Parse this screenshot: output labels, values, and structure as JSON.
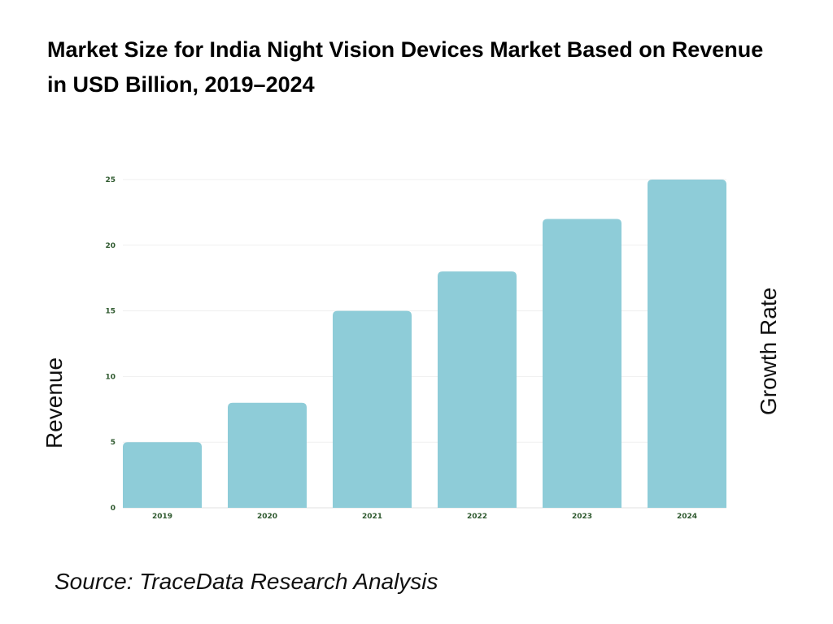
{
  "title": "Market Size for India Night Vision Devices Market Based on Revenue in USD Billion, 2019–2024",
  "source": "Source: TraceData Research Analysis",
  "chart_data": {
    "type": "bar",
    "title": "Market Size for India Night Vision Devices Market Based on Revenue in USD Billion, 2019–2024",
    "ylabel": "Revenue",
    "y2label": "Growth Rate",
    "categories": [
      "2019",
      "2020",
      "2021",
      "2022",
      "2023",
      "2024"
    ],
    "values": [
      5,
      8,
      15,
      18,
      22,
      25
    ],
    "ylim": [
      0,
      25
    ],
    "yticks": [
      0,
      5,
      10,
      15,
      20,
      25
    ],
    "grid": true,
    "bar_color": "#8ECCD8",
    "tick_color": "#2F5A2F"
  }
}
